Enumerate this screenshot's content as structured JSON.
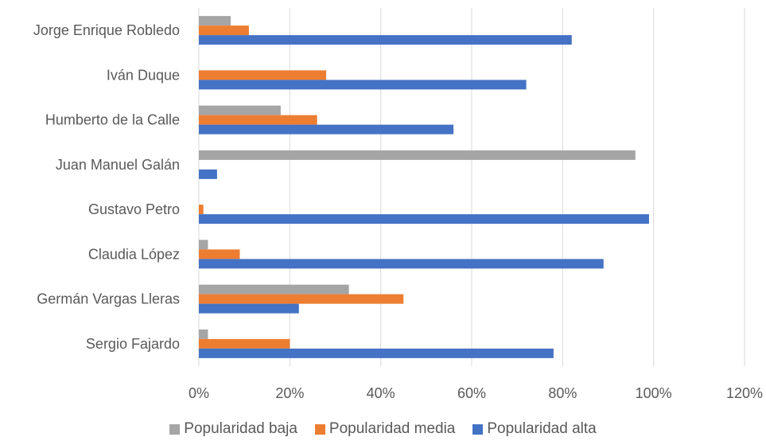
{
  "chart_data": {
    "type": "bar",
    "orientation": "horizontal",
    "categories": [
      "Jorge Enrique Robledo",
      "Iván Duque",
      "Humberto de la Calle",
      "Juan Manuel Galán",
      "Gustavo Petro",
      "Claudia López",
      "Germán Vargas Lleras",
      "Sergio Fajardo"
    ],
    "series": [
      {
        "name": "Popularidad baja",
        "color": "#a5a5a5",
        "values": [
          0.07,
          0,
          0.18,
          0.96,
          0,
          0.02,
          0.33,
          0.02
        ]
      },
      {
        "name": "Popularidad media",
        "color": "#ed7d31",
        "values": [
          0.11,
          0.28,
          0.26,
          0,
          0.01,
          0.09,
          0.45,
          0.2
        ]
      },
      {
        "name": "Popularidad alta",
        "color": "#4472c4",
        "values": [
          0.82,
          0.72,
          0.56,
          0.04,
          0.99,
          0.89,
          0.22,
          0.78
        ]
      }
    ],
    "xlim": [
      0,
      1.2
    ],
    "x_ticks": [
      0,
      0.2,
      0.4,
      0.6,
      0.8,
      1.0,
      1.2
    ],
    "x_tick_labels": [
      "0%",
      "20%",
      "40%",
      "60%",
      "80%",
      "100%",
      "120%"
    ],
    "grid": "vertical",
    "legend_position": "bottom",
    "title": "",
    "xlabel": "",
    "ylabel": ""
  }
}
